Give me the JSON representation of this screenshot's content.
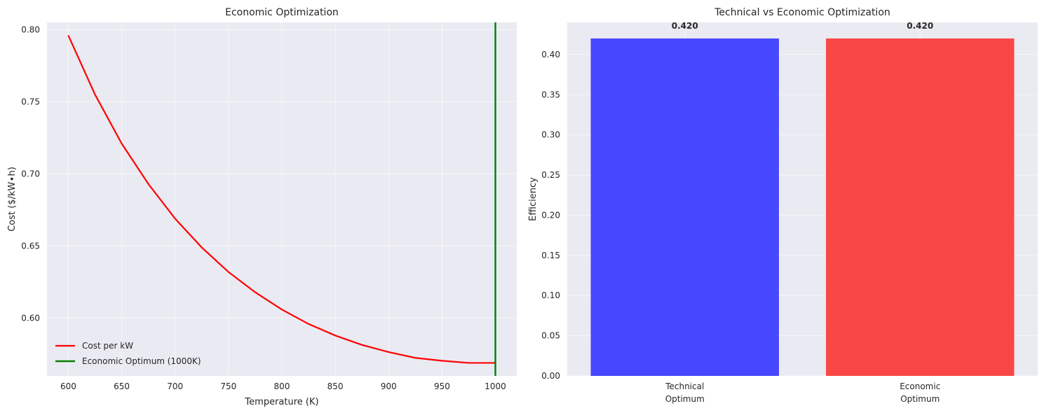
{
  "chart_data": [
    {
      "type": "line",
      "title": "Economic Optimization",
      "xlabel": "Temperature (K)",
      "ylabel": "Cost ($/kW∙h)",
      "xlim": [
        580,
        1020
      ],
      "ylim": [
        0.56,
        0.805
      ],
      "xticks": [
        600,
        650,
        700,
        750,
        800,
        850,
        900,
        950,
        1000
      ],
      "yticks": [
        0.6,
        0.65,
        0.7,
        0.75,
        0.8
      ],
      "xtick_labels": [
        "600",
        "650",
        "700",
        "750",
        "800",
        "850",
        "900",
        "950",
        "1000"
      ],
      "ytick_labels": [
        "0.60",
        "0.65",
        "0.70",
        "0.75",
        "0.80"
      ],
      "grid": true,
      "legend_position": "lower-left",
      "series": [
        {
          "name": "Cost per kW",
          "color": "#ff0000",
          "x": [
            600,
            625,
            650,
            675,
            700,
            725,
            750,
            775,
            800,
            825,
            850,
            875,
            900,
            925,
            950,
            975,
            1000
          ],
          "y": [
            0.796,
            0.755,
            0.721,
            0.693,
            0.669,
            0.649,
            0.632,
            0.618,
            0.606,
            0.596,
            0.588,
            0.5815,
            0.5765,
            0.5725,
            0.5705,
            0.569,
            0.569
          ]
        }
      ],
      "vlines": [
        {
          "name": "Economic Optimum (1000K)",
          "x": 1000,
          "color": "#008000"
        }
      ]
    },
    {
      "type": "bar",
      "title": "Technical vs Economic Optimization",
      "xlabel": "",
      "ylabel": "Efficiency",
      "ylim": [
        0,
        0.44
      ],
      "yticks": [
        0.0,
        0.05,
        0.1,
        0.15,
        0.2,
        0.25,
        0.3,
        0.35,
        0.4
      ],
      "ytick_labels": [
        "0.00",
        "0.05",
        "0.10",
        "0.15",
        "0.20",
        "0.25",
        "0.30",
        "0.35",
        "0.40"
      ],
      "grid": true,
      "categories": [
        [
          "Technical",
          "Optimum"
        ],
        [
          "Economic",
          "Optimum"
        ]
      ],
      "values": [
        0.42,
        0.42
      ],
      "value_labels": [
        "0.420",
        "0.420"
      ],
      "colors": [
        "#4747ff",
        "#f94747"
      ]
    }
  ]
}
